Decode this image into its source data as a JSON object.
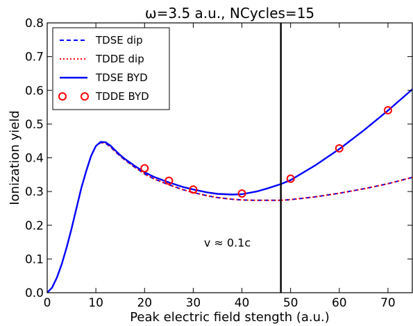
{
  "chart_data": {
    "type": "line",
    "title": "ω=3.5 a.u., NCycles=15",
    "xlabel": "Peak electric field stength  (a.u.)",
    "ylabel": "Ionization yield",
    "xlim": [
      0,
      75
    ],
    "ylim": [
      0.0,
      0.8
    ],
    "xticks": [
      0,
      10,
      20,
      30,
      40,
      50,
      60,
      70
    ],
    "yticks": [
      0.0,
      0.1,
      0.2,
      0.3,
      0.4,
      0.5,
      0.6,
      0.7,
      0.8
    ],
    "ytick_labels": [
      "0.0",
      "0.1",
      "0.2",
      "0.3",
      "0.4",
      "0.5",
      "0.6",
      "0.7",
      "0.8"
    ],
    "grid": false,
    "legend_position": "top-left",
    "vline": {
      "x": 48
    },
    "annotation": {
      "text": "v ≈ 0.1c",
      "x": 37,
      "y": 0.1
    },
    "colors": {
      "blue": "#0000ff",
      "red": "#ff0000",
      "black": "#000000"
    },
    "series": [
      {
        "name": "TDSE dip",
        "style": "dashed",
        "color": "#0000ff",
        "x": [
          0,
          1,
          2,
          3,
          4,
          5,
          6,
          7,
          8,
          9,
          10,
          11,
          12,
          13,
          14,
          15,
          16,
          18,
          20,
          22,
          25,
          28,
          30,
          33,
          35,
          38,
          40,
          43,
          45,
          48,
          50,
          55,
          60,
          65,
          70,
          75
        ],
        "y": [
          0.0,
          0.015,
          0.045,
          0.085,
          0.135,
          0.19,
          0.25,
          0.31,
          0.36,
          0.405,
          0.435,
          0.445,
          0.443,
          0.432,
          0.418,
          0.405,
          0.393,
          0.372,
          0.352,
          0.337,
          0.32,
          0.305,
          0.297,
          0.287,
          0.282,
          0.277,
          0.275,
          0.274,
          0.274,
          0.274,
          0.276,
          0.284,
          0.295,
          0.308,
          0.323,
          0.342
        ]
      },
      {
        "name": "TDDE dip",
        "style": "dotted",
        "color": "#ff0000",
        "x": [
          0,
          1,
          2,
          3,
          4,
          5,
          6,
          7,
          8,
          9,
          10,
          11,
          12,
          13,
          14,
          15,
          16,
          18,
          20,
          22,
          25,
          28,
          30,
          33,
          35,
          38,
          40,
          43,
          45,
          48,
          50,
          55,
          60,
          65,
          70,
          75
        ],
        "y": [
          0.0,
          0.015,
          0.045,
          0.085,
          0.135,
          0.19,
          0.25,
          0.31,
          0.36,
          0.405,
          0.435,
          0.445,
          0.443,
          0.432,
          0.418,
          0.405,
          0.393,
          0.372,
          0.352,
          0.337,
          0.32,
          0.305,
          0.297,
          0.287,
          0.282,
          0.277,
          0.275,
          0.274,
          0.274,
          0.274,
          0.276,
          0.284,
          0.295,
          0.308,
          0.323,
          0.342
        ]
      },
      {
        "name": "TDSE BYD",
        "style": "solid",
        "color": "#0000ff",
        "x": [
          0,
          1,
          2,
          3,
          4,
          5,
          6,
          7,
          8,
          9,
          10,
          11,
          12,
          13,
          14,
          15,
          16,
          18,
          20,
          22,
          25,
          28,
          30,
          33,
          35,
          38,
          40,
          43,
          45,
          48,
          50,
          55,
          60,
          65,
          70,
          75
        ],
        "y": [
          0.0,
          0.015,
          0.045,
          0.085,
          0.135,
          0.19,
          0.25,
          0.31,
          0.36,
          0.405,
          0.435,
          0.447,
          0.446,
          0.436,
          0.422,
          0.408,
          0.396,
          0.376,
          0.357,
          0.343,
          0.327,
          0.313,
          0.306,
          0.297,
          0.293,
          0.291,
          0.292,
          0.3,
          0.308,
          0.322,
          0.334,
          0.377,
          0.426,
          0.481,
          0.54,
          0.603
        ]
      },
      {
        "name": "TDDE BYD",
        "style": "markers",
        "color": "#ff0000",
        "x": [
          20,
          25,
          30,
          40,
          50,
          60,
          70
        ],
        "y": [
          0.369,
          0.332,
          0.306,
          0.294,
          0.338,
          0.428,
          0.541
        ]
      }
    ]
  }
}
